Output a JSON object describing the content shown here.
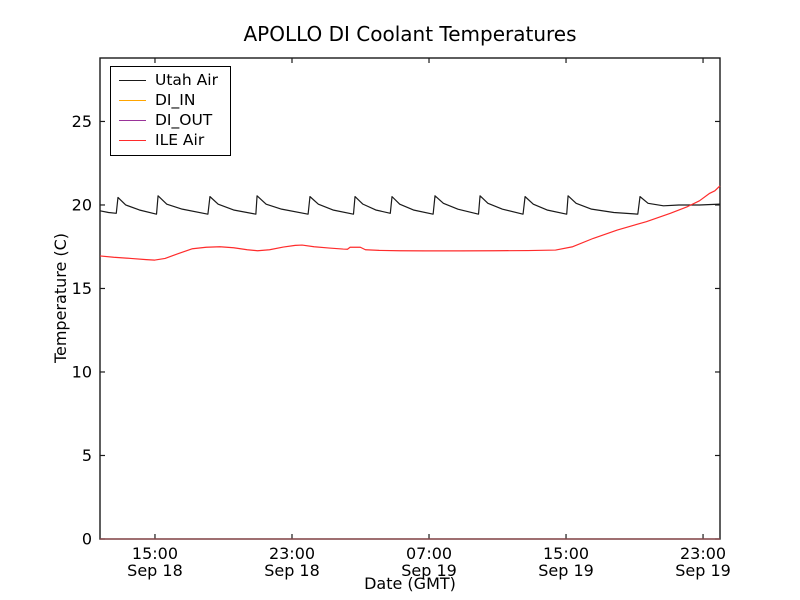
{
  "chart_data": {
    "type": "line",
    "title": "APOLLO DI Coolant Temperatures",
    "xlabel": "Date (GMT)",
    "ylabel": "Temperature (C)",
    "ylim": [
      0,
      28.8
    ],
    "xlim_hours": [
      0,
      36.2
    ],
    "grid": false,
    "legend_position": "upper left",
    "y_ticks": [
      0,
      5,
      10,
      15,
      20,
      25
    ],
    "x_ticks": [
      {
        "t": 3.21,
        "time": "15:00",
        "date": "Sep 18"
      },
      {
        "t": 11.21,
        "time": "23:00",
        "date": "Sep 18"
      },
      {
        "t": 19.21,
        "time": "07:00",
        "date": "Sep 19"
      },
      {
        "t": 27.21,
        "time": "15:00",
        "date": "Sep 19"
      },
      {
        "t": 35.21,
        "time": "23:00",
        "date": "Sep 19"
      }
    ],
    "series": [
      {
        "name": "Utah Air",
        "color": "#1a1a1a",
        "opacity": 1,
        "points": [
          [
            0,
            19.65
          ],
          [
            0.5,
            19.55
          ],
          [
            0.95,
            19.5
          ],
          [
            1.05,
            20.45
          ],
          [
            1.5,
            20.0
          ],
          [
            2.3,
            19.7
          ],
          [
            3.3,
            19.45
          ],
          [
            3.39,
            20.55
          ],
          [
            3.9,
            20.05
          ],
          [
            4.8,
            19.75
          ],
          [
            6.3,
            19.45
          ],
          [
            6.42,
            20.5
          ],
          [
            6.9,
            20.05
          ],
          [
            7.8,
            19.7
          ],
          [
            9.1,
            19.45
          ],
          [
            9.17,
            20.55
          ],
          [
            9.7,
            20.05
          ],
          [
            10.6,
            19.75
          ],
          [
            12.15,
            19.45
          ],
          [
            12.26,
            20.5
          ],
          [
            12.75,
            20.05
          ],
          [
            13.6,
            19.7
          ],
          [
            14.8,
            19.45
          ],
          [
            14.89,
            20.5
          ],
          [
            15.35,
            20.05
          ],
          [
            16.1,
            19.7
          ],
          [
            16.95,
            19.5
          ],
          [
            17.05,
            20.5
          ],
          [
            17.5,
            20.05
          ],
          [
            18.3,
            19.7
          ],
          [
            19.45,
            19.45
          ],
          [
            19.56,
            20.55
          ],
          [
            20.05,
            20.1
          ],
          [
            20.9,
            19.75
          ],
          [
            22.1,
            19.45
          ],
          [
            22.19,
            20.55
          ],
          [
            22.65,
            20.1
          ],
          [
            23.5,
            19.75
          ],
          [
            24.7,
            19.45
          ],
          [
            24.82,
            20.5
          ],
          [
            25.3,
            20.05
          ],
          [
            26.1,
            19.7
          ],
          [
            27.25,
            19.45
          ],
          [
            27.33,
            20.55
          ],
          [
            27.8,
            20.1
          ],
          [
            28.7,
            19.75
          ],
          [
            30.0,
            19.55
          ],
          [
            31.4,
            19.45
          ],
          [
            31.53,
            20.5
          ],
          [
            32.0,
            20.1
          ],
          [
            32.9,
            19.95
          ],
          [
            33.8,
            20.0
          ],
          [
            35.0,
            20.0
          ],
          [
            36.2,
            20.05
          ]
        ]
      },
      {
        "name": "DI_IN",
        "color": "#ffa500",
        "opacity": 0.5,
        "points": [
          [
            0,
            0
          ],
          [
            36.2,
            0
          ]
        ]
      },
      {
        "name": "DI_OUT",
        "color": "#993399",
        "opacity": 0.5,
        "points": [
          [
            0,
            0
          ],
          [
            36.2,
            0
          ]
        ]
      },
      {
        "name": "ILE Air",
        "color": "#ff2b2b",
        "opacity": 1,
        "points": [
          [
            0,
            16.95
          ],
          [
            0.8,
            16.87
          ],
          [
            1.8,
            16.8
          ],
          [
            2.7,
            16.73
          ],
          [
            3.2,
            16.7
          ],
          [
            3.8,
            16.8
          ],
          [
            4.6,
            17.1
          ],
          [
            5.4,
            17.38
          ],
          [
            6.2,
            17.47
          ],
          [
            7.0,
            17.5
          ],
          [
            7.8,
            17.44
          ],
          [
            8.6,
            17.32
          ],
          [
            9.2,
            17.26
          ],
          [
            9.9,
            17.32
          ],
          [
            10.7,
            17.48
          ],
          [
            11.4,
            17.58
          ],
          [
            11.8,
            17.6
          ],
          [
            12.5,
            17.5
          ],
          [
            13.4,
            17.42
          ],
          [
            14.2,
            17.36
          ],
          [
            14.45,
            17.35
          ],
          [
            14.6,
            17.47
          ],
          [
            15.2,
            17.47
          ],
          [
            15.5,
            17.32
          ],
          [
            16.3,
            17.28
          ],
          [
            17.5,
            17.26
          ],
          [
            19.0,
            17.25
          ],
          [
            21.0,
            17.25
          ],
          [
            23.0,
            17.26
          ],
          [
            25.0,
            17.27
          ],
          [
            26.6,
            17.3
          ],
          [
            27.6,
            17.5
          ],
          [
            28.8,
            18.0
          ],
          [
            30.2,
            18.5
          ],
          [
            31.9,
            19.0
          ],
          [
            33.3,
            19.5
          ],
          [
            34.3,
            19.9
          ],
          [
            35.0,
            20.25
          ],
          [
            35.6,
            20.7
          ],
          [
            35.9,
            20.85
          ],
          [
            36.2,
            21.15
          ]
        ]
      }
    ]
  }
}
